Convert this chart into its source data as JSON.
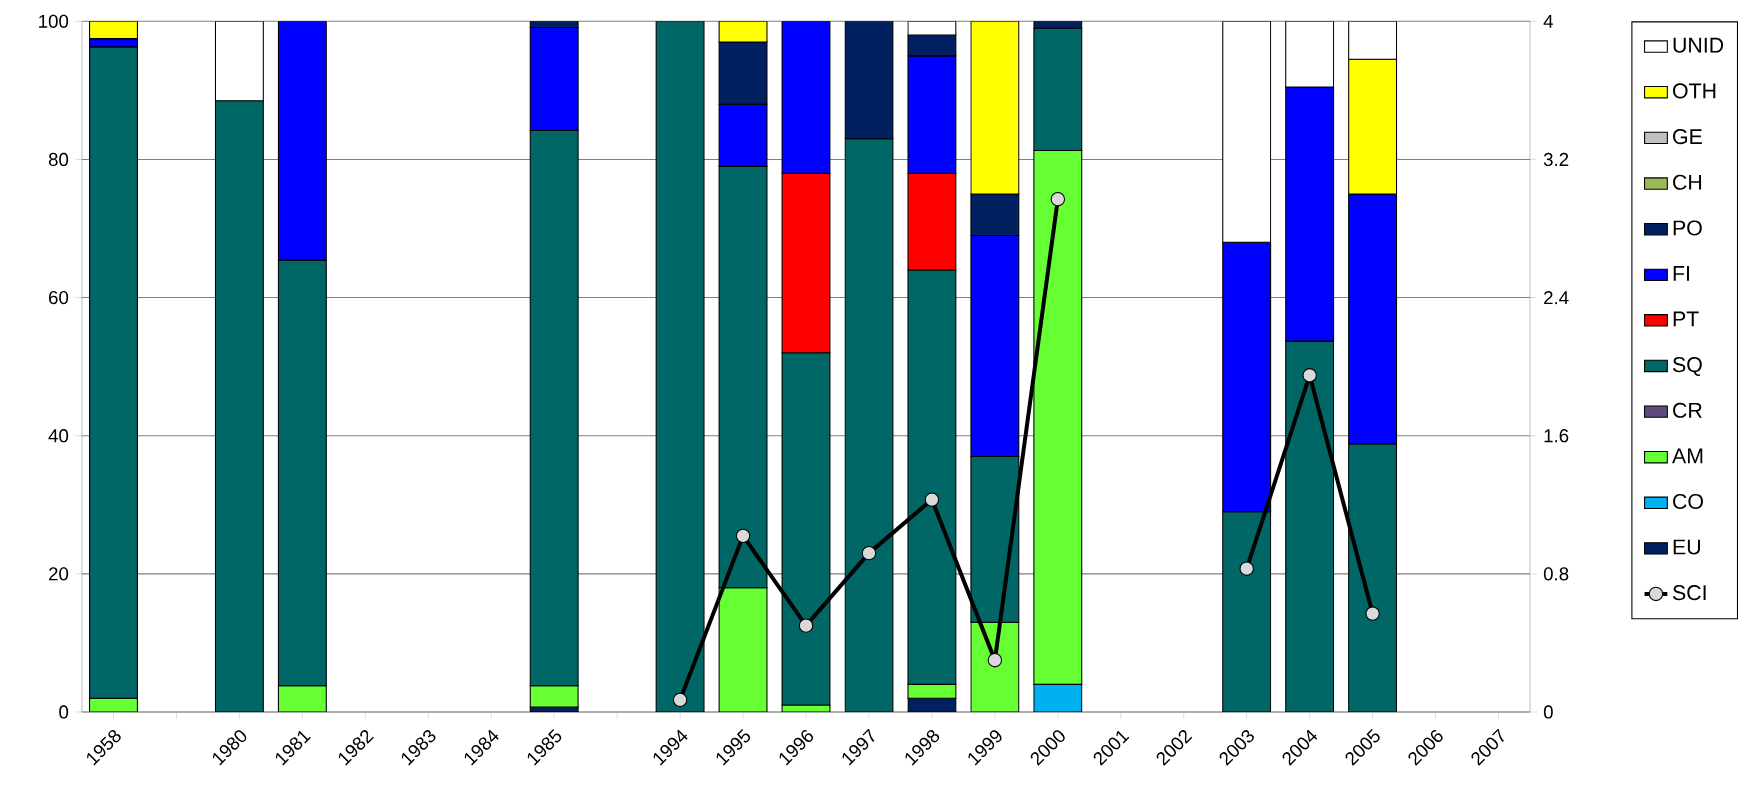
{
  "chart_data": {
    "type": "bar",
    "stacked": true,
    "categories": [
      "1958",
      null,
      "1980",
      "1981",
      "1982",
      "1983",
      "1984",
      "1985",
      null,
      "1994",
      "1995",
      "1996",
      "1997",
      "1998",
      "1999",
      "2000",
      "2001",
      "2002",
      "2003",
      "2004",
      "2005",
      "2006",
      "2007"
    ],
    "series": [
      {
        "name": "EU",
        "color": "#002060",
        "values": [
          null,
          null,
          null,
          null,
          null,
          null,
          null,
          0.7,
          null,
          null,
          null,
          null,
          null,
          2,
          null,
          null,
          null,
          null,
          null,
          null,
          null,
          null,
          null
        ]
      },
      {
        "name": "CO",
        "color": "#00b0f0",
        "values": [
          null,
          null,
          null,
          null,
          null,
          null,
          null,
          null,
          null,
          null,
          null,
          null,
          null,
          null,
          null,
          4,
          null,
          null,
          null,
          null,
          null,
          null,
          null
        ]
      },
      {
        "name": "AM",
        "color": "#66ff33",
        "values": [
          2,
          null,
          null,
          3.8,
          null,
          null,
          null,
          3.1,
          null,
          null,
          18,
          1,
          null,
          2,
          13,
          77.3,
          null,
          null,
          null,
          null,
          null,
          null,
          null
        ]
      },
      {
        "name": "CR",
        "color": "#604a7b",
        "values": [
          null,
          null,
          null,
          null,
          null,
          null,
          null,
          null,
          null,
          null,
          null,
          null,
          null,
          null,
          null,
          null,
          null,
          null,
          null,
          null,
          null,
          null,
          null
        ]
      },
      {
        "name": "SQ",
        "color": "#006666",
        "values": [
          94.3,
          null,
          88.5,
          61.6,
          null,
          null,
          null,
          80.4,
          null,
          100,
          61,
          51,
          83,
          60,
          24,
          17.7,
          null,
          null,
          29,
          53.7,
          38.8,
          null,
          null
        ]
      },
      {
        "name": "PT",
        "color": "#ff0000",
        "values": [
          null,
          null,
          null,
          null,
          null,
          null,
          null,
          null,
          null,
          null,
          null,
          26,
          null,
          14,
          null,
          null,
          null,
          null,
          null,
          null,
          null,
          null,
          null
        ]
      },
      {
        "name": "FI",
        "color": "#0000ff",
        "values": [
          1.2,
          null,
          null,
          34.6,
          null,
          null,
          null,
          14.9,
          null,
          null,
          9,
          22,
          null,
          17,
          32,
          null,
          null,
          null,
          39,
          36.8,
          36.2,
          null,
          null
        ]
      },
      {
        "name": "PO",
        "color": "#002060",
        "values": [
          null,
          null,
          null,
          null,
          null,
          null,
          null,
          0.9,
          null,
          null,
          9,
          null,
          17,
          3,
          6,
          1,
          null,
          null,
          null,
          null,
          null,
          null,
          null
        ]
      },
      {
        "name": "CH",
        "color": "#9bbb59",
        "values": [
          null,
          null,
          null,
          null,
          null,
          null,
          null,
          null,
          null,
          null,
          null,
          null,
          null,
          null,
          null,
          null,
          null,
          null,
          null,
          null,
          null,
          null,
          null
        ]
      },
      {
        "name": "GE",
        "color": "#c0c0c0",
        "values": [
          null,
          null,
          null,
          null,
          null,
          null,
          null,
          null,
          null,
          null,
          null,
          null,
          null,
          null,
          null,
          null,
          null,
          null,
          null,
          null,
          null,
          null,
          null
        ]
      },
      {
        "name": "OTH",
        "color": "#ffff00",
        "values": [
          2.5,
          null,
          null,
          null,
          null,
          null,
          null,
          null,
          null,
          null,
          3,
          null,
          null,
          null,
          25,
          null,
          null,
          null,
          null,
          null,
          19.5,
          null,
          null
        ]
      },
      {
        "name": "UNID",
        "color": "#ffffff",
        "values": [
          null,
          null,
          11.5,
          null,
          null,
          null,
          null,
          null,
          null,
          null,
          null,
          null,
          null,
          2,
          null,
          null,
          null,
          null,
          32,
          9.5,
          5.5,
          null,
          null
        ]
      },
      {
        "name": "SCI",
        "type": "line",
        "axis": "y2",
        "color": "#000000",
        "values": [
          null,
          null,
          null,
          null,
          null,
          null,
          null,
          null,
          null,
          0.07,
          1.02,
          0.5,
          0.92,
          1.23,
          0.3,
          2.97,
          null,
          null,
          0.83,
          1.95,
          0.57,
          null,
          null
        ]
      }
    ],
    "ylim": [
      0,
      100
    ],
    "yticks": [
      0,
      20,
      40,
      60,
      80,
      100
    ],
    "y2lim": [
      0,
      4
    ],
    "y2ticks": [
      0,
      0.8,
      1.6,
      2.4,
      3.2,
      4
    ],
    "grid": "y",
    "legend": "right",
    "marker": "circle"
  }
}
